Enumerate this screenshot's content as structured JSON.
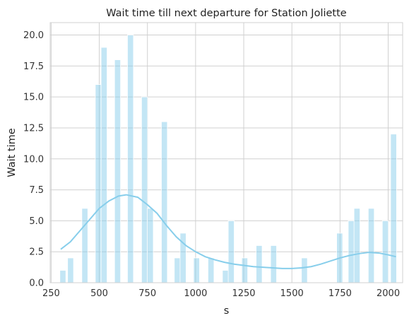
{
  "chart_data": {
    "type": "bar",
    "title": "Wait time till next departure for Station Joliette",
    "xlabel": "s",
    "ylabel": "Wait time",
    "xlim": [
      245,
      2075
    ],
    "ylim": [
      0,
      21
    ],
    "x_ticks": [
      250,
      500,
      750,
      1000,
      1250,
      1500,
      1750,
      2000
    ],
    "x_tick_labels": [
      "250",
      "500",
      "750",
      "1000",
      "1250",
      "1500",
      "1750",
      "2000"
    ],
    "y_ticks": [
      0,
      2.5,
      5,
      7.5,
      10,
      12.5,
      15,
      17.5,
      20
    ],
    "y_tick_labels": [
      "0.0",
      "2.5",
      "5.0",
      "7.5",
      "10.0",
      "12.5",
      "15.0",
      "17.5",
      "20.0"
    ],
    "grid": true,
    "legend": "none",
    "bar_color": "#87CEEB",
    "bar_opacity": 0.5,
    "bar_width": 31,
    "bars": [
      {
        "x": 311,
        "value": 1
      },
      {
        "x": 351,
        "value": 2
      },
      {
        "x": 425,
        "value": 6
      },
      {
        "x": 495,
        "value": 16
      },
      {
        "x": 525,
        "value": 19
      },
      {
        "x": 595,
        "value": 18
      },
      {
        "x": 662,
        "value": 20
      },
      {
        "x": 735,
        "value": 15
      },
      {
        "x": 765,
        "value": 6
      },
      {
        "x": 838,
        "value": 13
      },
      {
        "x": 905,
        "value": 2
      },
      {
        "x": 935,
        "value": 4
      },
      {
        "x": 1005,
        "value": 2
      },
      {
        "x": 1080,
        "value": 2
      },
      {
        "x": 1155,
        "value": 1
      },
      {
        "x": 1185,
        "value": 5
      },
      {
        "x": 1255,
        "value": 2
      },
      {
        "x": 1330,
        "value": 3
      },
      {
        "x": 1405,
        "value": 3
      },
      {
        "x": 1565,
        "value": 2
      },
      {
        "x": 1748,
        "value": 4
      },
      {
        "x": 1808,
        "value": 5
      },
      {
        "x": 1838,
        "value": 6
      },
      {
        "x": 1912,
        "value": 6
      },
      {
        "x": 1985,
        "value": 5
      },
      {
        "x": 2028,
        "value": 12
      }
    ],
    "kde_color": "#87CEEB",
    "kde": [
      {
        "x": 300,
        "y": 2.7
      },
      {
        "x": 350,
        "y": 3.3
      },
      {
        "x": 400,
        "y": 4.2
      },
      {
        "x": 450,
        "y": 5.1
      },
      {
        "x": 500,
        "y": 6.0
      },
      {
        "x": 550,
        "y": 6.6
      },
      {
        "x": 600,
        "y": 7.0
      },
      {
        "x": 640,
        "y": 7.1
      },
      {
        "x": 700,
        "y": 6.9
      },
      {
        "x": 750,
        "y": 6.3
      },
      {
        "x": 800,
        "y": 5.6
      },
      {
        "x": 850,
        "y": 4.6
      },
      {
        "x": 900,
        "y": 3.7
      },
      {
        "x": 950,
        "y": 3.0
      },
      {
        "x": 1000,
        "y": 2.5
      },
      {
        "x": 1050,
        "y": 2.1
      },
      {
        "x": 1100,
        "y": 1.85
      },
      {
        "x": 1150,
        "y": 1.65
      },
      {
        "x": 1200,
        "y": 1.5
      },
      {
        "x": 1250,
        "y": 1.4
      },
      {
        "x": 1300,
        "y": 1.3
      },
      {
        "x": 1350,
        "y": 1.25
      },
      {
        "x": 1400,
        "y": 1.2
      },
      {
        "x": 1450,
        "y": 1.15
      },
      {
        "x": 1500,
        "y": 1.15
      },
      {
        "x": 1550,
        "y": 1.2
      },
      {
        "x": 1600,
        "y": 1.3
      },
      {
        "x": 1650,
        "y": 1.5
      },
      {
        "x": 1700,
        "y": 1.75
      },
      {
        "x": 1750,
        "y": 2.0
      },
      {
        "x": 1800,
        "y": 2.2
      },
      {
        "x": 1850,
        "y": 2.35
      },
      {
        "x": 1900,
        "y": 2.45
      },
      {
        "x": 1950,
        "y": 2.4
      },
      {
        "x": 2000,
        "y": 2.25
      },
      {
        "x": 2040,
        "y": 2.1
      }
    ]
  }
}
